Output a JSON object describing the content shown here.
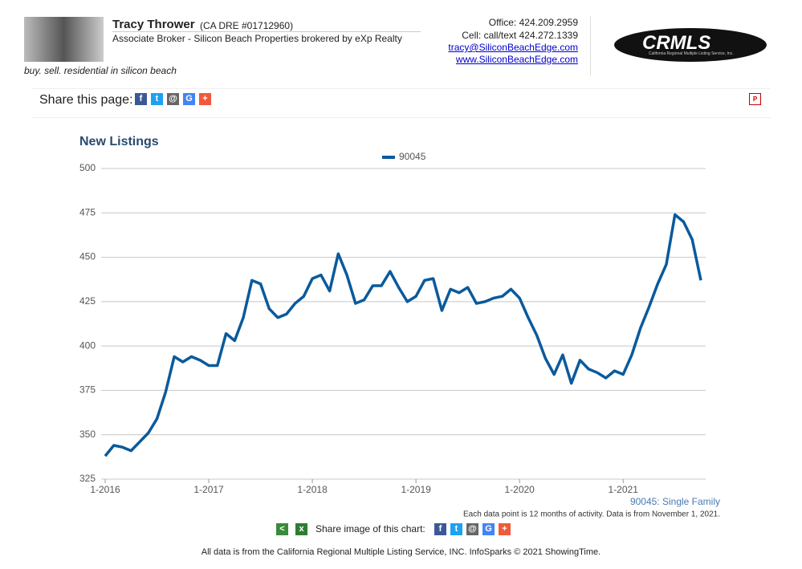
{
  "header": {
    "name": "Tracy Thrower",
    "license": "(CA DRE #01712960)",
    "role": "Associate Broker - Silicon Beach Properties brokered by eXp Realty",
    "tagline": "buy. sell. residential in silicon beach",
    "office": "Office: 424.209.2959",
    "cell": "Cell: call/text 424.272.1339",
    "email": "tracy@SiliconBeachEdge.com",
    "website": "www.SiliconBeachEdge.com",
    "logo": "CRMLS",
    "logo_subtitle": "California Regional Multiple Listing Service, Inc."
  },
  "share_label": "Share this page:",
  "chart_data": {
    "type": "line",
    "title": "New Listings",
    "categories": [
      "1-2016",
      null,
      null,
      null,
      null,
      null,
      null,
      null,
      null,
      null,
      null,
      null,
      "1-2017",
      null,
      null,
      null,
      null,
      null,
      null,
      null,
      null,
      null,
      null,
      null,
      "1-2018",
      null,
      null,
      null,
      null,
      null,
      null,
      null,
      null,
      null,
      null,
      null,
      "1-2019",
      null,
      null,
      null,
      null,
      null,
      null,
      null,
      null,
      null,
      null,
      null,
      "1-2020",
      null,
      null,
      null,
      null,
      null,
      null,
      null,
      null,
      null,
      null,
      null,
      "1-2021",
      null,
      null,
      null,
      null,
      null,
      null,
      null,
      null,
      null
    ],
    "series": [
      {
        "name": "90045",
        "color": "#0a5a9c",
        "values": [
          338,
          344,
          343,
          341,
          346,
          351,
          359,
          374,
          394,
          391,
          394,
          392,
          389,
          389,
          407,
          403,
          416,
          437,
          435,
          421,
          416,
          418,
          424,
          428,
          438,
          440,
          431,
          452,
          440,
          424,
          426,
          434,
          434,
          442,
          433,
          425,
          428,
          437,
          438,
          420,
          432,
          430,
          433,
          424,
          425,
          427,
          428,
          432,
          427,
          416,
          406,
          393,
          384,
          395,
          379,
          392,
          387,
          385,
          382,
          386,
          384,
          395,
          410,
          422,
          435,
          446,
          474,
          470,
          460,
          437
        ]
      }
    ],
    "ylim": [
      325,
      500
    ],
    "yticks": [
      325,
      350,
      375,
      400,
      425,
      450,
      475,
      500
    ],
    "grid": true,
    "legend": "top",
    "annotation": "90045: Single Family",
    "note": "Each data point is 12 months of activity. Data is from November 1, 2021."
  },
  "share_image_label": "Share image of this chart:",
  "footer": "All data is from the California Regional Multiple Listing Service, INC. InfoSparks © 2021 ShowingTime."
}
